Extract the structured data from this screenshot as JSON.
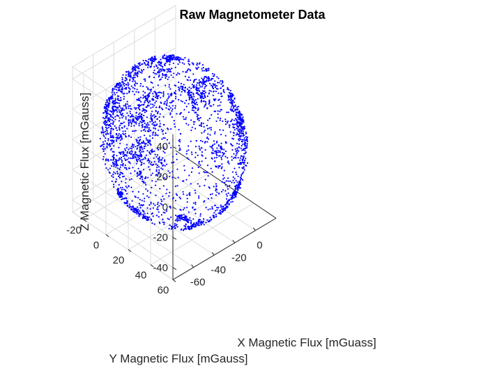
{
  "chart_data": {
    "type": "scatter",
    "projection": "3d",
    "title": "Raw Magnetometer Data",
    "xlabel": "X Magnetic Flux [mGuass]",
    "ylabel": "Y Magnetic Flux [mGauss]",
    "zlabel": "Z Magnetic Flux [mGauss]",
    "xlim": [
      -80,
      20
    ],
    "ylim": [
      -30,
      60
    ],
    "zlim": [
      -48,
      48
    ],
    "x_ticks": [
      "-60",
      "-40",
      "-20",
      "0"
    ],
    "y_ticks": [
      "-20",
      "0",
      "20",
      "40",
      "60"
    ],
    "z_ticks": [
      "-40",
      "-20",
      "0",
      "20",
      "40"
    ],
    "grid": true,
    "marker": "dot",
    "marker_color": "#0000ff",
    "sphere_center": {
      "x": -30,
      "y": 15,
      "z": 0
    },
    "sphere_radius": 48,
    "point_count": 3000
  }
}
